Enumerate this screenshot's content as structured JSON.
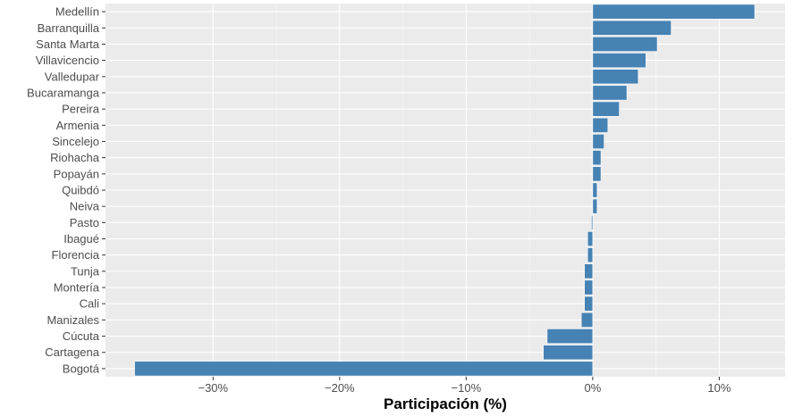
{
  "chart_data": {
    "type": "bar",
    "orientation": "horizontal",
    "title": "",
    "xlabel": "Participación (%)",
    "ylabel": "",
    "xlim": [
      -0.385,
      0.152
    ],
    "x_ticks": [
      -0.3,
      -0.2,
      -0.1,
      0.0,
      0.1
    ],
    "x_tick_labels": [
      "−30%",
      "−20%",
      "−10%",
      "0%",
      "10%"
    ],
    "grid": true,
    "legend": "none",
    "bar_color": "#4682b4",
    "panel_color": "#ebebeb",
    "categories": [
      "Medellín",
      "Barranquilla",
      "Santa Marta",
      "Villavicencio",
      "Valledupar",
      "Bucaramanga",
      "Pereira",
      "Armenia",
      "Sincelejo",
      "Riohacha",
      "Popayán",
      "Quibdó",
      "Neiva",
      "Pasto",
      "Ibagué",
      "Florencia",
      "Tunja",
      "Montería",
      "Cali",
      "Manizales",
      "Cúcuta",
      "Cartagena",
      "Bogotá"
    ],
    "values": [
      0.128,
      0.062,
      0.051,
      0.042,
      0.036,
      0.027,
      0.021,
      0.012,
      0.009,
      0.0065,
      0.0065,
      0.0035,
      0.0035,
      -0.001,
      -0.004,
      -0.004,
      -0.0065,
      -0.0065,
      -0.0065,
      -0.009,
      -0.036,
      -0.039,
      -0.362
    ]
  }
}
